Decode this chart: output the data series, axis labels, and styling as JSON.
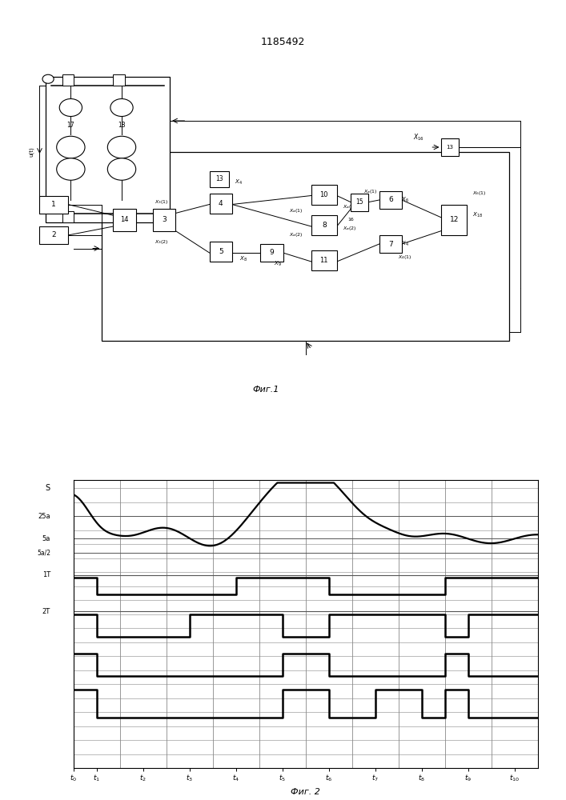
{
  "title": "1185492",
  "fig1_caption": "Фиг.1",
  "fig2_caption": "Фиг. 2",
  "background_color": "#ffffff",
  "line_color": "#000000",
  "ytick_labels_left": [
    "S",
    "25a",
    "5a",
    "5a/2",
    "1T",
    "2T"
  ],
  "grid_color": "#888888",
  "curve_color": "#000000",
  "step_color": "#000000"
}
